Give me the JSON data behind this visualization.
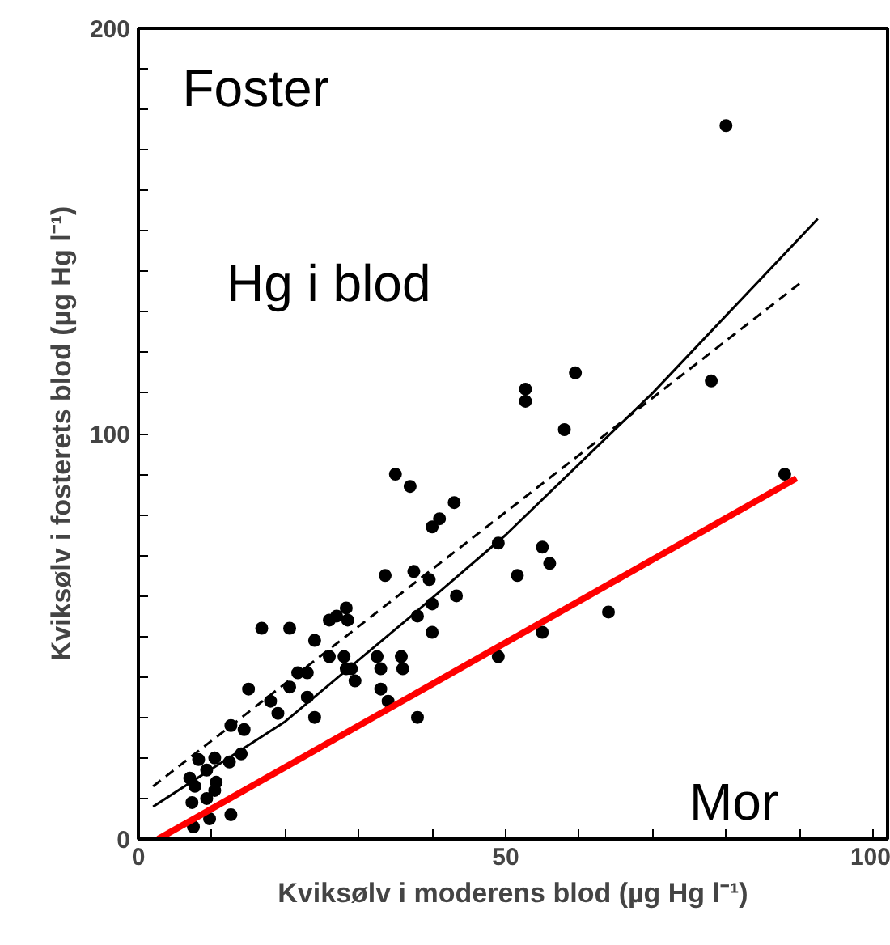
{
  "chart_data": {
    "type": "scatter",
    "xlabel": "Kviksølv i moderens blod (µg Hg l⁻¹)",
    "ylabel": "Kviksølv i fosterets blod (µg Hg l⁻¹)",
    "annotations": [
      "Foster",
      "Hg i blod",
      "Mor"
    ],
    "xlim": [
      0,
      102
    ],
    "ylim": [
      0,
      200
    ],
    "xticks": [
      0,
      {
        "value": 10,
        "label": null
      },
      {
        "value": 20,
        "label": null
      },
      {
        "value": 30,
        "label": null
      },
      {
        "value": 40,
        "label": null
      },
      50,
      {
        "value": 60,
        "label": null
      },
      {
        "value": 70,
        "label": null
      },
      {
        "value": 80,
        "label": null
      },
      {
        "value": 90,
        "label": null
      },
      100
    ],
    "yticks": [
      0,
      {
        "value": 10,
        "label": null
      },
      {
        "value": 20,
        "label": null
      },
      {
        "value": 30,
        "label": null
      },
      {
        "value": 40,
        "label": null
      },
      {
        "value": 50,
        "label": null
      },
      {
        "value": 60,
        "label": null
      },
      {
        "value": 70,
        "label": null
      },
      {
        "value": 80,
        "label": null
      },
      {
        "value": 90,
        "label": null
      },
      100,
      {
        "value": 110,
        "label": null
      },
      {
        "value": 120,
        "label": null
      },
      {
        "value": 130,
        "label": null
      },
      {
        "value": 140,
        "label": null
      },
      {
        "value": 150,
        "label": null
      },
      {
        "value": 160,
        "label": null
      },
      {
        "value": 170,
        "label": null
      },
      {
        "value": 180,
        "label": null
      },
      {
        "value": 190,
        "label": null
      },
      200
    ],
    "grid": false,
    "marker": "circle",
    "series": [
      {
        "color": "#000000",
        "x": [
          80,
          78,
          88,
          52.7,
          52.7,
          59.5,
          58,
          49,
          55,
          56,
          37,
          43,
          41,
          40,
          37.5,
          39.6,
          51.6,
          43.3,
          40,
          38,
          40,
          64,
          55,
          49,
          38,
          35,
          33.6,
          16.8,
          20.6,
          26,
          27,
          28.3,
          28.5,
          24,
          26,
          28,
          28.3,
          29,
          29.5,
          32.5,
          33,
          35.8,
          36,
          33,
          34,
          21.7,
          23,
          20.6,
          23,
          24,
          19,
          18,
          15,
          12.6,
          14.4,
          14,
          12.4,
          10.4,
          8.2,
          9.3,
          7,
          7.7,
          10.6,
          10.4,
          9.3,
          7.3,
          9.7,
          12.6,
          7.5
        ],
        "values": [
          176,
          113,
          90,
          111,
          108,
          115,
          101,
          73,
          72,
          68,
          87,
          83,
          79,
          77,
          66,
          64,
          65,
          60,
          58,
          55,
          51,
          56,
          51,
          45,
          30,
          90,
          65,
          52,
          52,
          54,
          55,
          57,
          54,
          49,
          45,
          45,
          42,
          42,
          39,
          45,
          42,
          45,
          42,
          37,
          34,
          41,
          41,
          37.5,
          35,
          30,
          31,
          34,
          37,
          28,
          27,
          21,
          19,
          20,
          19.6,
          17,
          15,
          13,
          14,
          12,
          10,
          9,
          5,
          6,
          3
        ]
      },
      {
        "type": "line",
        "color": "#000000",
        "line_style": "solid",
        "marker": "none",
        "x": [
          2,
          20,
          36.5,
          50,
          70,
          92.5
        ],
        "values": [
          8,
          29,
          54,
          75,
          110,
          153
        ]
      },
      {
        "type": "line",
        "color": "#000000",
        "line_style": "dashed",
        "marker": "none",
        "x": [
          2,
          90
        ],
        "values": [
          13,
          137
        ]
      },
      {
        "type": "line",
        "color": "#ff0000",
        "line_style": "solid",
        "marker": "none",
        "x": [
          2.7,
          89.6
        ],
        "values": [
          0,
          89
        ]
      }
    ]
  }
}
